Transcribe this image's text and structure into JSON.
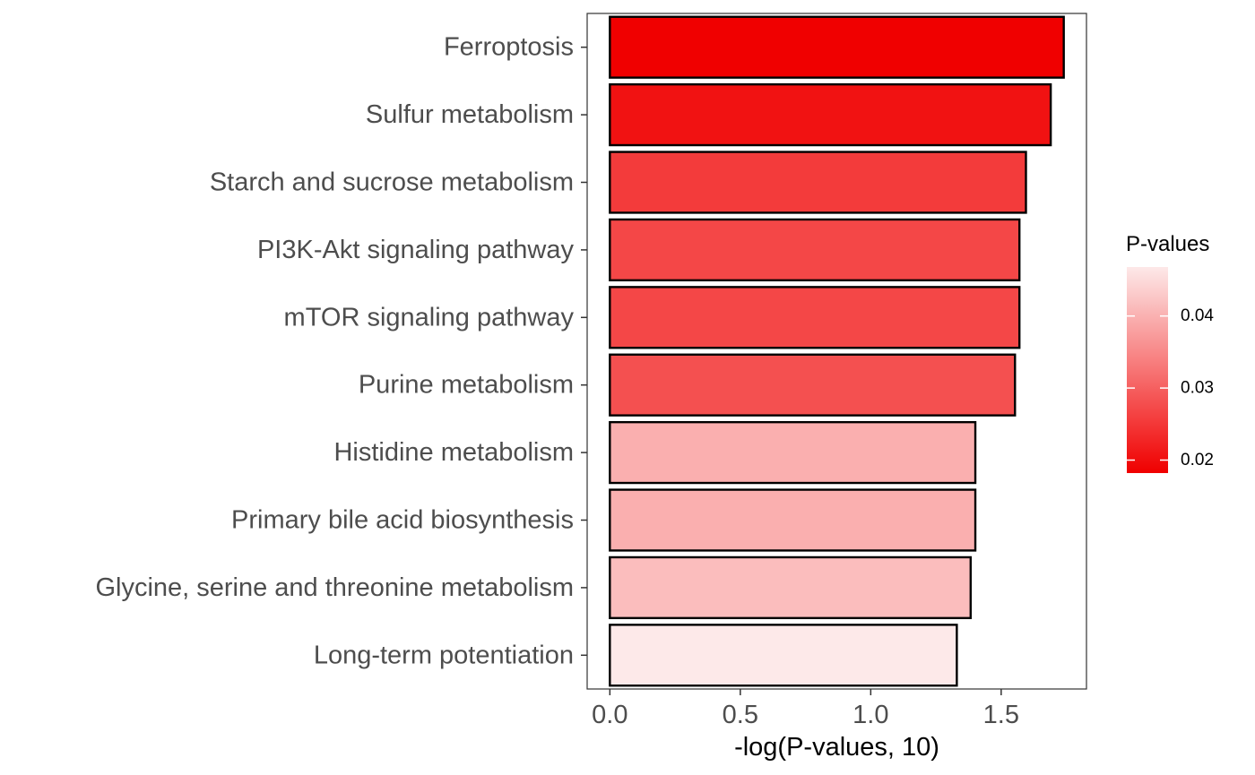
{
  "chart_data": {
    "type": "bar",
    "orientation": "horizontal",
    "categories": [
      "Ferroptosis",
      "Sulfur metabolism",
      "Starch and sucrose metabolism",
      "PI3K-Akt signaling pathway",
      "mTOR signaling pathway",
      "Purine metabolism",
      "Histidine metabolism",
      "Primary bile acid biosynthesis",
      "Glycine, serine and threonine metabolism",
      "Long-term potentiation"
    ],
    "values": [
      1.74,
      1.69,
      1.595,
      1.57,
      1.57,
      1.553,
      1.401,
      1.401,
      1.383,
      1.33
    ],
    "pvalues": [
      0.0182,
      0.0204,
      0.0254,
      0.0269,
      0.0269,
      0.028,
      0.0397,
      0.0397,
      0.0414,
      0.0468
    ],
    "xlabel": "-log(P-values, 10)",
    "ylabel": "",
    "xlim": [
      -0.087,
      1.827
    ],
    "xticks": [
      0.0,
      0.5,
      1.0,
      1.5
    ],
    "xtick_labels": [
      "0.0",
      "0.5",
      "1.0",
      "1.5"
    ],
    "grid": false,
    "legend": {
      "title": "P-values",
      "position": "right",
      "type": "colorbar",
      "range": [
        0.0182,
        0.0468
      ],
      "ticks": [
        0.02,
        0.03,
        0.04
      ],
      "tick_labels": [
        "0.02",
        "0.03",
        "0.04"
      ],
      "low_color": "#f00000",
      "high_color": "#fde9e9"
    },
    "bar_outline_color": "#000000"
  }
}
